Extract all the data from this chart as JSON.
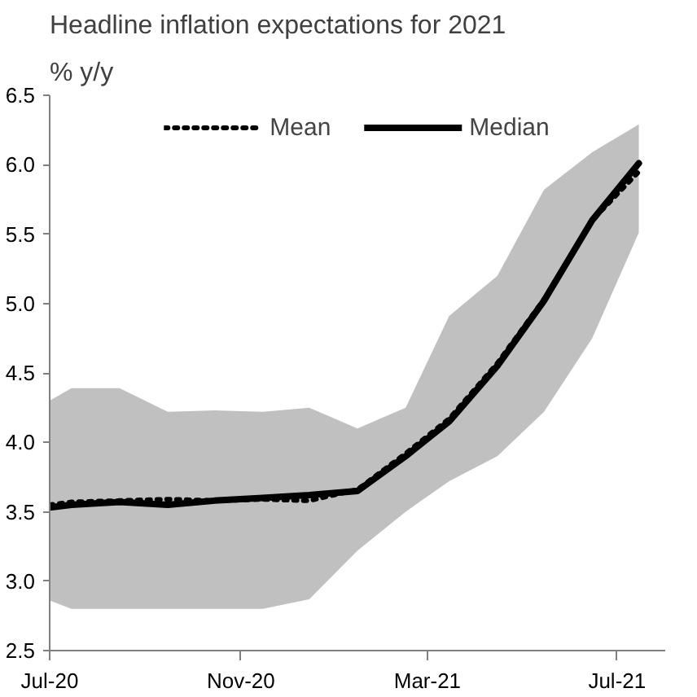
{
  "chart_data": {
    "type": "line",
    "title": "Headline inflation expectations for 2021",
    "subtitle": "% y/y",
    "x": [
      "2020-07-01",
      "2020-07-15",
      "2020-08-15",
      "2020-09-15",
      "2020-10-15",
      "2020-11-15",
      "2020-12-15",
      "2021-01-15",
      "2021-02-15",
      "2021-03-15",
      "2021-04-15",
      "2021-05-15",
      "2021-06-15",
      "2021-07-15"
    ],
    "series": [
      {
        "name": "Mean",
        "color": "#000000",
        "line_style": "dotted",
        "values": [
          3.55,
          3.57,
          3.58,
          3.59,
          3.58,
          3.59,
          3.58,
          3.66,
          3.92,
          4.17,
          4.57,
          5.03,
          5.6,
          5.95
        ]
      },
      {
        "name": "Median",
        "color": "#000000",
        "line_style": "solid",
        "values": [
          3.53,
          3.55,
          3.57,
          3.55,
          3.58,
          3.6,
          3.62,
          3.65,
          3.9,
          4.15,
          4.55,
          5.02,
          5.6,
          6.01
        ],
        "lower": [
          2.86,
          2.8,
          2.8,
          2.8,
          2.8,
          2.8,
          2.87,
          3.22,
          3.5,
          3.72,
          3.9,
          4.22,
          4.75,
          5.51
        ],
        "upper": [
          4.3,
          4.39,
          4.39,
          4.22,
          4.23,
          4.22,
          4.25,
          4.1,
          4.25,
          4.91,
          5.2,
          5.82,
          6.09,
          6.29
        ]
      }
    ],
    "xlim": [
      "2020-07-01",
      "2021-08-01"
    ],
    "xticks": [
      {
        "value": "2020-07-01",
        "label": "Jul-20"
      },
      {
        "value": "2020-11-01",
        "label": "Nov-20"
      },
      {
        "value": "2021-03-01",
        "label": "Mar-21"
      },
      {
        "value": "2021-07-01",
        "label": "Jul-21"
      }
    ],
    "ylim": [
      2.5,
      6.5
    ],
    "yticks": [
      2.5,
      {
        "value": 3,
        "label": "3.0"
      },
      3.5,
      {
        "value": 4,
        "label": "4.0"
      },
      4.5,
      {
        "value": 5,
        "label": "5.0"
      },
      5.5,
      {
        "value": 6,
        "label": "6.0"
      },
      6.5
    ],
    "grid": false,
    "legend": "top",
    "marker": "none"
  }
}
